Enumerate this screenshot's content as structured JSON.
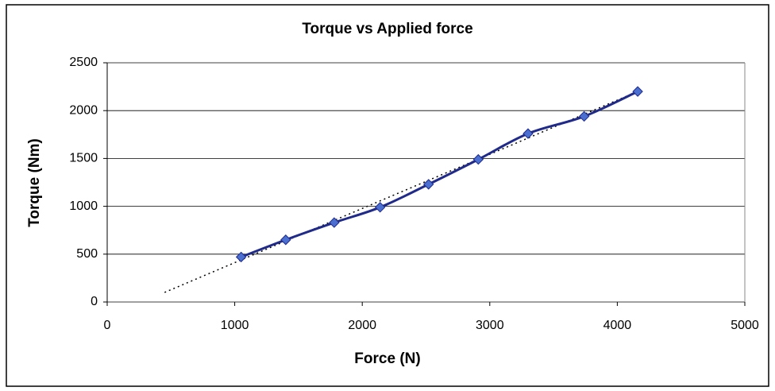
{
  "chart_data": {
    "type": "scatter-line",
    "title": "Torque vs Applied force",
    "x_label": "Force (N)",
    "y_label": "Torque (Nm)",
    "x": [
      1050,
      1400,
      1780,
      2140,
      2520,
      2910,
      3300,
      3740,
      4160
    ],
    "series": [
      {
        "color": "#1f2a8a",
        "marker_color": "#4a6fd0",
        "values": [
          470,
          650,
          830,
          990,
          1230,
          1490,
          1760,
          1940,
          2200
        ]
      }
    ],
    "trendline": {
      "type": "linear",
      "x": [
        450,
        4160
      ],
      "values": [
        100,
        2200
      ]
    },
    "xlim": [
      0,
      5000
    ],
    "xticks": [
      0,
      1000,
      2000,
      3000,
      4000,
      5000
    ],
    "ylim": [
      0,
      2500
    ],
    "yticks": [
      0,
      500,
      1000,
      1500,
      2000,
      2500
    ],
    "grid": true
  }
}
